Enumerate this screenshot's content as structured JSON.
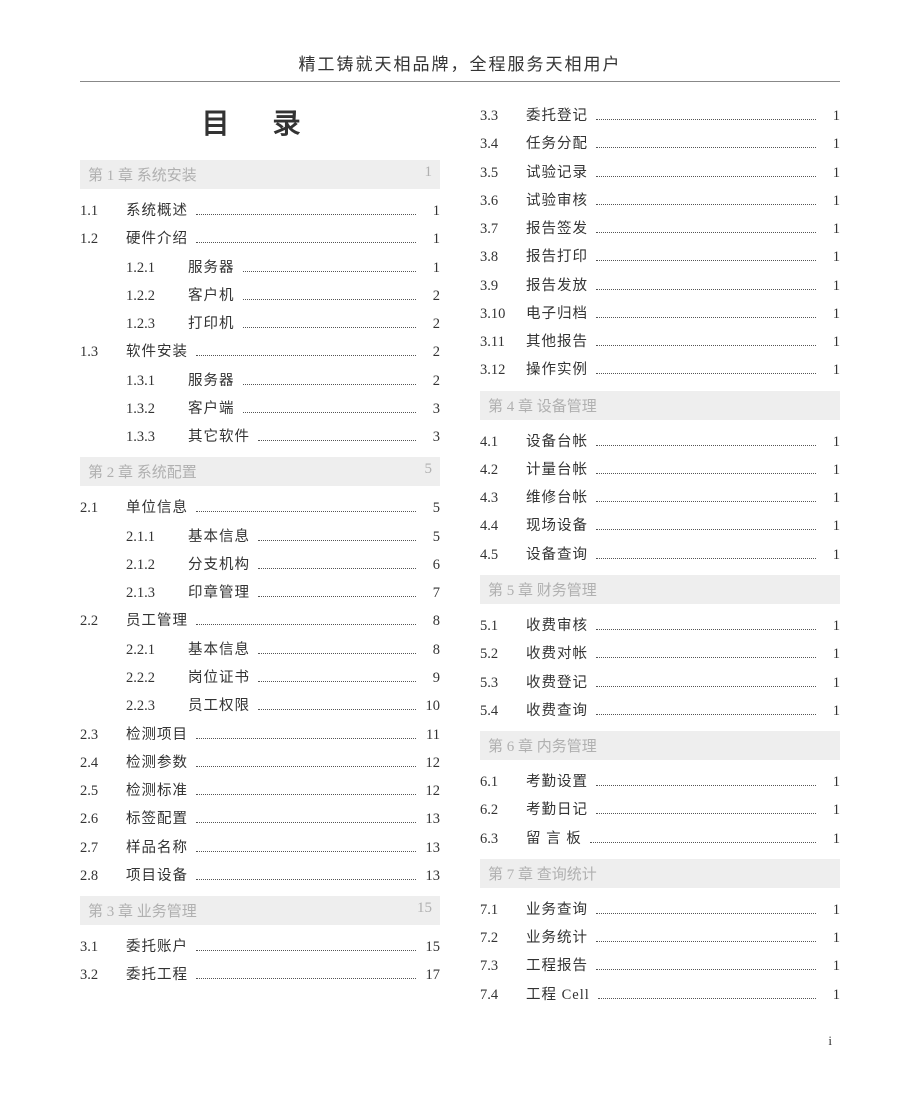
{
  "header": "精工铸就天相品牌，全程服务天相用户",
  "toc_title": "目 录",
  "page_number": "i",
  "columns": [
    [
      {
        "type": "chapter",
        "label": "第 1 章 系统安装",
        "page": "1"
      },
      {
        "type": "entry",
        "num": "1.1",
        "label": "系统概述",
        "page": "1"
      },
      {
        "type": "entry",
        "num": "1.2",
        "label": "硬件介绍",
        "page": "1"
      },
      {
        "type": "sub",
        "num": "1.2.1",
        "label": "服务器",
        "page": "1"
      },
      {
        "type": "sub",
        "num": "1.2.2",
        "label": "客户机",
        "page": "2"
      },
      {
        "type": "sub",
        "num": "1.2.3",
        "label": "打印机",
        "page": "2"
      },
      {
        "type": "entry",
        "num": "1.3",
        "label": "软件安装",
        "page": "2"
      },
      {
        "type": "sub",
        "num": "1.3.1",
        "label": "服务器",
        "page": "2"
      },
      {
        "type": "sub",
        "num": "1.3.2",
        "label": "客户端",
        "page": "3"
      },
      {
        "type": "sub",
        "num": "1.3.3",
        "label": "其它软件",
        "page": "3"
      },
      {
        "type": "chapter",
        "label": "第 2 章 系统配置",
        "page": "5"
      },
      {
        "type": "entry",
        "num": "2.1",
        "label": "单位信息",
        "page": "5"
      },
      {
        "type": "sub",
        "num": "2.1.1",
        "label": "基本信息",
        "page": "5"
      },
      {
        "type": "sub",
        "num": "2.1.2",
        "label": "分支机构",
        "page": "6"
      },
      {
        "type": "sub",
        "num": "2.1.3",
        "label": "印章管理",
        "page": "7"
      },
      {
        "type": "entry",
        "num": "2.2",
        "label": "员工管理",
        "page": "8"
      },
      {
        "type": "sub",
        "num": "2.2.1",
        "label": "基本信息",
        "page": "8"
      },
      {
        "type": "sub",
        "num": "2.2.2",
        "label": "岗位证书",
        "page": "9"
      },
      {
        "type": "sub",
        "num": "2.2.3",
        "label": "员工权限",
        "page": "10"
      },
      {
        "type": "entry",
        "num": "2.3",
        "label": "检测项目",
        "page": "11"
      },
      {
        "type": "entry",
        "num": "2.4",
        "label": "检测参数",
        "page": "12"
      },
      {
        "type": "entry",
        "num": "2.5",
        "label": "检测标准",
        "page": "12"
      },
      {
        "type": "entry",
        "num": "2.6",
        "label": "标签配置",
        "page": "13"
      },
      {
        "type": "entry",
        "num": "2.7",
        "label": "样品名称",
        "page": "13"
      },
      {
        "type": "entry",
        "num": "2.8",
        "label": "项目设备",
        "page": "13"
      },
      {
        "type": "chapter",
        "label": "第 3 章 业务管理",
        "page": "15"
      },
      {
        "type": "entry",
        "num": "3.1",
        "label": "委托账户",
        "page": "15"
      },
      {
        "type": "entry",
        "num": "3.2",
        "label": "委托工程",
        "page": "17"
      }
    ],
    [
      {
        "type": "entry",
        "num": "3.3",
        "label": "委托登记",
        "page": "1"
      },
      {
        "type": "entry",
        "num": "3.4",
        "label": "任务分配",
        "page": "1"
      },
      {
        "type": "entry",
        "num": "3.5",
        "label": "试验记录",
        "page": "1"
      },
      {
        "type": "entry",
        "num": "3.6",
        "label": "试验审核",
        "page": "1"
      },
      {
        "type": "entry",
        "num": "3.7",
        "label": "报告签发",
        "page": "1"
      },
      {
        "type": "entry",
        "num": "3.8",
        "label": "报告打印",
        "page": "1"
      },
      {
        "type": "entry",
        "num": "3.9",
        "label": "报告发放",
        "page": "1"
      },
      {
        "type": "entry",
        "num": "3.10",
        "label": "电子归档",
        "page": "1"
      },
      {
        "type": "entry",
        "num": "3.11",
        "label": "其他报告",
        "page": "1"
      },
      {
        "type": "entry",
        "num": "3.12",
        "label": "操作实例",
        "page": "1"
      },
      {
        "type": "chapter",
        "label": "第 4 章 设备管理",
        "page": ""
      },
      {
        "type": "entry",
        "num": "4.1",
        "label": "设备台帐",
        "page": "1"
      },
      {
        "type": "entry",
        "num": "4.2",
        "label": "计量台帐",
        "page": "1"
      },
      {
        "type": "entry",
        "num": "4.3",
        "label": "维修台帐",
        "page": "1"
      },
      {
        "type": "entry",
        "num": "4.4",
        "label": "现场设备",
        "page": "1"
      },
      {
        "type": "entry",
        "num": "4.5",
        "label": "设备查询",
        "page": "1"
      },
      {
        "type": "chapter",
        "label": "第 5 章 财务管理",
        "page": ""
      },
      {
        "type": "entry",
        "num": "5.1",
        "label": "收费审核",
        "page": "1"
      },
      {
        "type": "entry",
        "num": "5.2",
        "label": "收费对帐",
        "page": "1"
      },
      {
        "type": "entry",
        "num": "5.3",
        "label": "收费登记",
        "page": "1"
      },
      {
        "type": "entry",
        "num": "5.4",
        "label": "收费查询",
        "page": "1"
      },
      {
        "type": "chapter",
        "label": "第 6 章 内务管理",
        "page": ""
      },
      {
        "type": "entry",
        "num": "6.1",
        "label": "考勤设置",
        "page": "1"
      },
      {
        "type": "entry",
        "num": "6.2",
        "label": "考勤日记",
        "page": "1"
      },
      {
        "type": "entry",
        "num": "6.3",
        "label": "留 言 板",
        "page": "1"
      },
      {
        "type": "chapter",
        "label": "第 7 章 查询统计",
        "page": ""
      },
      {
        "type": "entry",
        "num": "7.1",
        "label": "业务查询",
        "page": "1"
      },
      {
        "type": "entry",
        "num": "7.2",
        "label": "业务统计",
        "page": "1"
      },
      {
        "type": "entry",
        "num": "7.3",
        "label": "工程报告",
        "page": "1"
      },
      {
        "type": "entry",
        "num": "7.4",
        "label": "工程 Cell",
        "page": "1"
      }
    ]
  ]
}
